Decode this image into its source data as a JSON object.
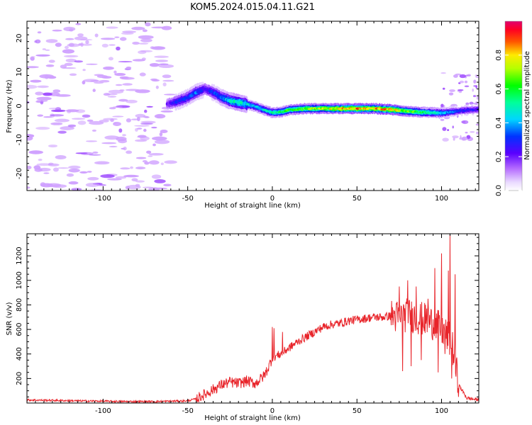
{
  "figure": {
    "title": "KOM5.2024.015.04.11.G21"
  },
  "chart_data": [
    {
      "type": "heatmap",
      "xlabel": "Height of straight line (km)",
      "ylabel": "Frequency (Hz)",
      "xlim": [
        -145,
        122
      ],
      "ylim": [
        -25,
        25
      ],
      "xticks": [
        -100,
        -50,
        0,
        50,
        100
      ],
      "yticks": [
        -20,
        -10,
        0,
        10,
        20
      ],
      "colorbar": {
        "label": "Normalized spectral amplitude",
        "range": [
          0,
          1
        ],
        "ticks": [
          0.0,
          0.2,
          0.4,
          0.6,
          0.8
        ],
        "colors": [
          "#ffffff",
          "#c78bff",
          "#8a2be2",
          "#1e00ff",
          "#00d5ff",
          "#00ff40",
          "#ffff00",
          "#ff3300",
          "#e0005a"
        ]
      },
      "ridge": {
        "x": [
          -62,
          -55,
          -50,
          -45,
          -40,
          -35,
          -30,
          -25,
          -20,
          -15,
          -10,
          -5,
          0,
          5,
          10,
          20,
          30,
          40,
          50,
          60,
          70,
          80,
          90,
          100,
          110,
          122
        ],
        "y": [
          0.5,
          1.5,
          2.5,
          4,
          5,
          4,
          2.5,
          1.5,
          1,
          0.5,
          -0.2,
          -1.2,
          -2,
          -1.8,
          -1.2,
          -0.8,
          -0.8,
          -0.8,
          -0.8,
          -0.8,
          -1.1,
          -1.6,
          -1.9,
          -2.1,
          -1.5,
          -1
        ],
        "amplitude": [
          0.2,
          0.3,
          0.3,
          0.35,
          0.25,
          0.3,
          0.35,
          0.45,
          0.5,
          0.45,
          0.4,
          0.45,
          0.5,
          0.55,
          0.6,
          0.65,
          0.7,
          0.8,
          0.82,
          0.8,
          0.85,
          0.65,
          0.55,
          0.45,
          0.3,
          0.25
        ]
      }
    },
    {
      "type": "line",
      "xlabel": "Height of straight line (km)",
      "ylabel": "SNR (v/v)",
      "xlim": [
        -145,
        122
      ],
      "ylim": [
        0,
        1380
      ],
      "xticks": [
        -100,
        -50,
        0,
        50,
        100
      ],
      "yticks": [
        200,
        400,
        600,
        800,
        1000,
        1200
      ],
      "series": [
        {
          "color": "#e8242a",
          "x": [
            -145,
            -130,
            -115,
            -100,
            -85,
            -70,
            -60,
            -50,
            -45,
            -40,
            -35,
            -30,
            -25,
            -20,
            -15,
            -10,
            -5,
            -2,
            0,
            5,
            10,
            15,
            20,
            25,
            30,
            35,
            40,
            45,
            50,
            55,
            60,
            65,
            70,
            75,
            80,
            85,
            90,
            95,
            100,
            103,
            106,
            110,
            115,
            122
          ],
          "y": [
            25,
            22,
            18,
            15,
            12,
            12,
            15,
            18,
            35,
            70,
            110,
            150,
            170,
            160,
            180,
            160,
            220,
            300,
            370,
            400,
            450,
            500,
            540,
            580,
            620,
            640,
            650,
            670,
            680,
            690,
            700,
            700,
            710,
            700,
            720,
            700,
            680,
            650,
            600,
            550,
            500,
            150,
            40,
            25
          ]
        }
      ],
      "peaks": {
        "x": [
          0,
          1,
          6,
          75,
          77,
          80,
          82,
          85,
          88,
          92,
          96,
          98,
          100,
          102,
          104,
          105,
          106,
          108,
          110
        ],
        "y": [
          620,
          610,
          580,
          950,
          260,
          1000,
          300,
          950,
          350,
          850,
          1100,
          250,
          1220,
          400,
          1080,
          1380,
          200,
          1050,
          50
        ]
      }
    }
  ]
}
